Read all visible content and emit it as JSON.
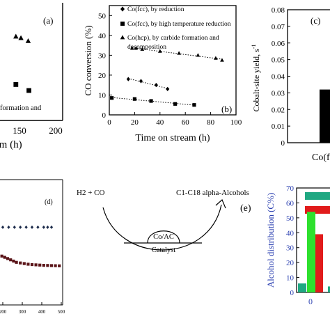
{
  "chart_data": [
    {
      "panel": "a",
      "type": "scatter",
      "label": "(a)",
      "x_ticks": [
        "150",
        "200"
      ],
      "legend_fragment": "formation and",
      "xlabel_fragment": "am (h)",
      "series": [
        {
          "marker": "triangle",
          "points": [
            [
              145,
              28
            ],
            [
              152,
              27.5
            ],
            [
              162,
              26.5
            ]
          ]
        },
        {
          "marker": "square",
          "points": [
            [
              145,
              12
            ],
            [
              163,
              10
            ]
          ]
        }
      ],
      "xlim": [
        110,
        200
      ]
    },
    {
      "panel": "b",
      "type": "scatter",
      "label": "(b)",
      "xlabel": "Time on stream (h)",
      "ylabel": "CO conversion (%)",
      "xlim": [
        0,
        100
      ],
      "ylim": [
        0,
        55
      ],
      "x_ticks": [
        "0",
        "20",
        "40",
        "60",
        "80",
        "100"
      ],
      "y_ticks": [
        "0",
        "10",
        "20",
        "30",
        "40",
        "50"
      ],
      "series": [
        {
          "name": "Co(fcc), by reduction",
          "marker": "diamond",
          "points": [
            [
              15,
              18
            ],
            [
              25,
              17
            ],
            [
              37,
              15
            ],
            [
              46,
              13
            ]
          ]
        },
        {
          "name": "Co(fcc), by high temperature reduction",
          "marker": "square",
          "points": [
            [
              2,
              8.5
            ],
            [
              20,
              8
            ],
            [
              33,
              7
            ],
            [
              52,
              5.5
            ],
            [
              67,
              5
            ]
          ]
        },
        {
          "name": "Co(hcp), by carbide formation and decomposition",
          "marker": "triangle",
          "points": [
            [
              18,
              33.5
            ],
            [
              21,
              33.5
            ],
            [
              26,
              33
            ],
            [
              40,
              32
            ],
            [
              55,
              31
            ],
            [
              70,
              30
            ],
            [
              84,
              28.5
            ],
            [
              89,
              27.5
            ]
          ]
        }
      ]
    },
    {
      "panel": "c",
      "type": "bar",
      "label": "(c)",
      "ylabel": "Cobalt-site yield, s",
      "ylabel_sup": "-1",
      "ylim": [
        0,
        0.08
      ],
      "y_ticks": [
        "0",
        "0.01",
        "0.02",
        "0.03",
        "0.04",
        "0.05",
        "0.06",
        "0.07",
        "0.08"
      ],
      "categories": [
        "Co(f"
      ],
      "values": [
        0.032
      ]
    },
    {
      "panel": "d",
      "type": "scatter",
      "label": "(d)",
      "xlim": [
        175,
        500
      ],
      "x_ticks": [
        "200",
        "300",
        "400",
        "500"
      ],
      "series": [
        {
          "marker": "diamond",
          "color": "#1b2a4a",
          "points": [
            [
              180,
              0.62
            ],
            [
              200,
              0.62
            ],
            [
              230,
              0.62
            ],
            [
              260,
              0.62
            ],
            [
              290,
              0.62
            ],
            [
              320,
              0.62
            ],
            [
              350,
              0.62
            ],
            [
              380,
              0.62
            ],
            [
              410,
              0.62
            ],
            [
              430,
              0.62
            ],
            [
              450,
              0.62
            ]
          ]
        },
        {
          "marker": "square",
          "color": "#5a1418",
          "points": [
            [
              180,
              0.4
            ],
            [
              195,
              0.39
            ],
            [
              210,
              0.38
            ],
            [
              225,
              0.37
            ],
            [
              240,
              0.36
            ],
            [
              255,
              0.35
            ],
            [
              270,
              0.34
            ],
            [
              290,
              0.335
            ],
            [
              310,
              0.33
            ],
            [
              330,
              0.325
            ],
            [
              350,
              0.322
            ],
            [
              370,
              0.32
            ],
            [
              390,
              0.318
            ],
            [
              410,
              0.316
            ],
            [
              430,
              0.315
            ],
            [
              450,
              0.314
            ],
            [
              470,
              0.313
            ],
            [
              490,
              0.312
            ]
          ]
        }
      ],
      "ylim": [
        0,
        1
      ]
    },
    {
      "panel": "e",
      "type": "diagram",
      "label": "(e)",
      "reactant": "H2 + CO",
      "product": "C1-C18 alpha-Alcohols",
      "site": "Co/AC",
      "caption": "Catalyst"
    },
    {
      "panel": "f",
      "type": "bar",
      "ylabel": "Alcohol distribution (C%)",
      "ylim": [
        0,
        70
      ],
      "y_ticks": [
        "0",
        "10",
        "20",
        "30",
        "40",
        "50",
        "60",
        "70"
      ],
      "x_ticks": [
        "0"
      ],
      "series": [
        {
          "color": "#1fa882",
          "values": [
            6,
            4
          ]
        },
        {
          "color": "#2ee02e",
          "values": [
            54
          ]
        },
        {
          "color": "#e11b1b",
          "values": [
            39
          ]
        }
      ]
    }
  ]
}
